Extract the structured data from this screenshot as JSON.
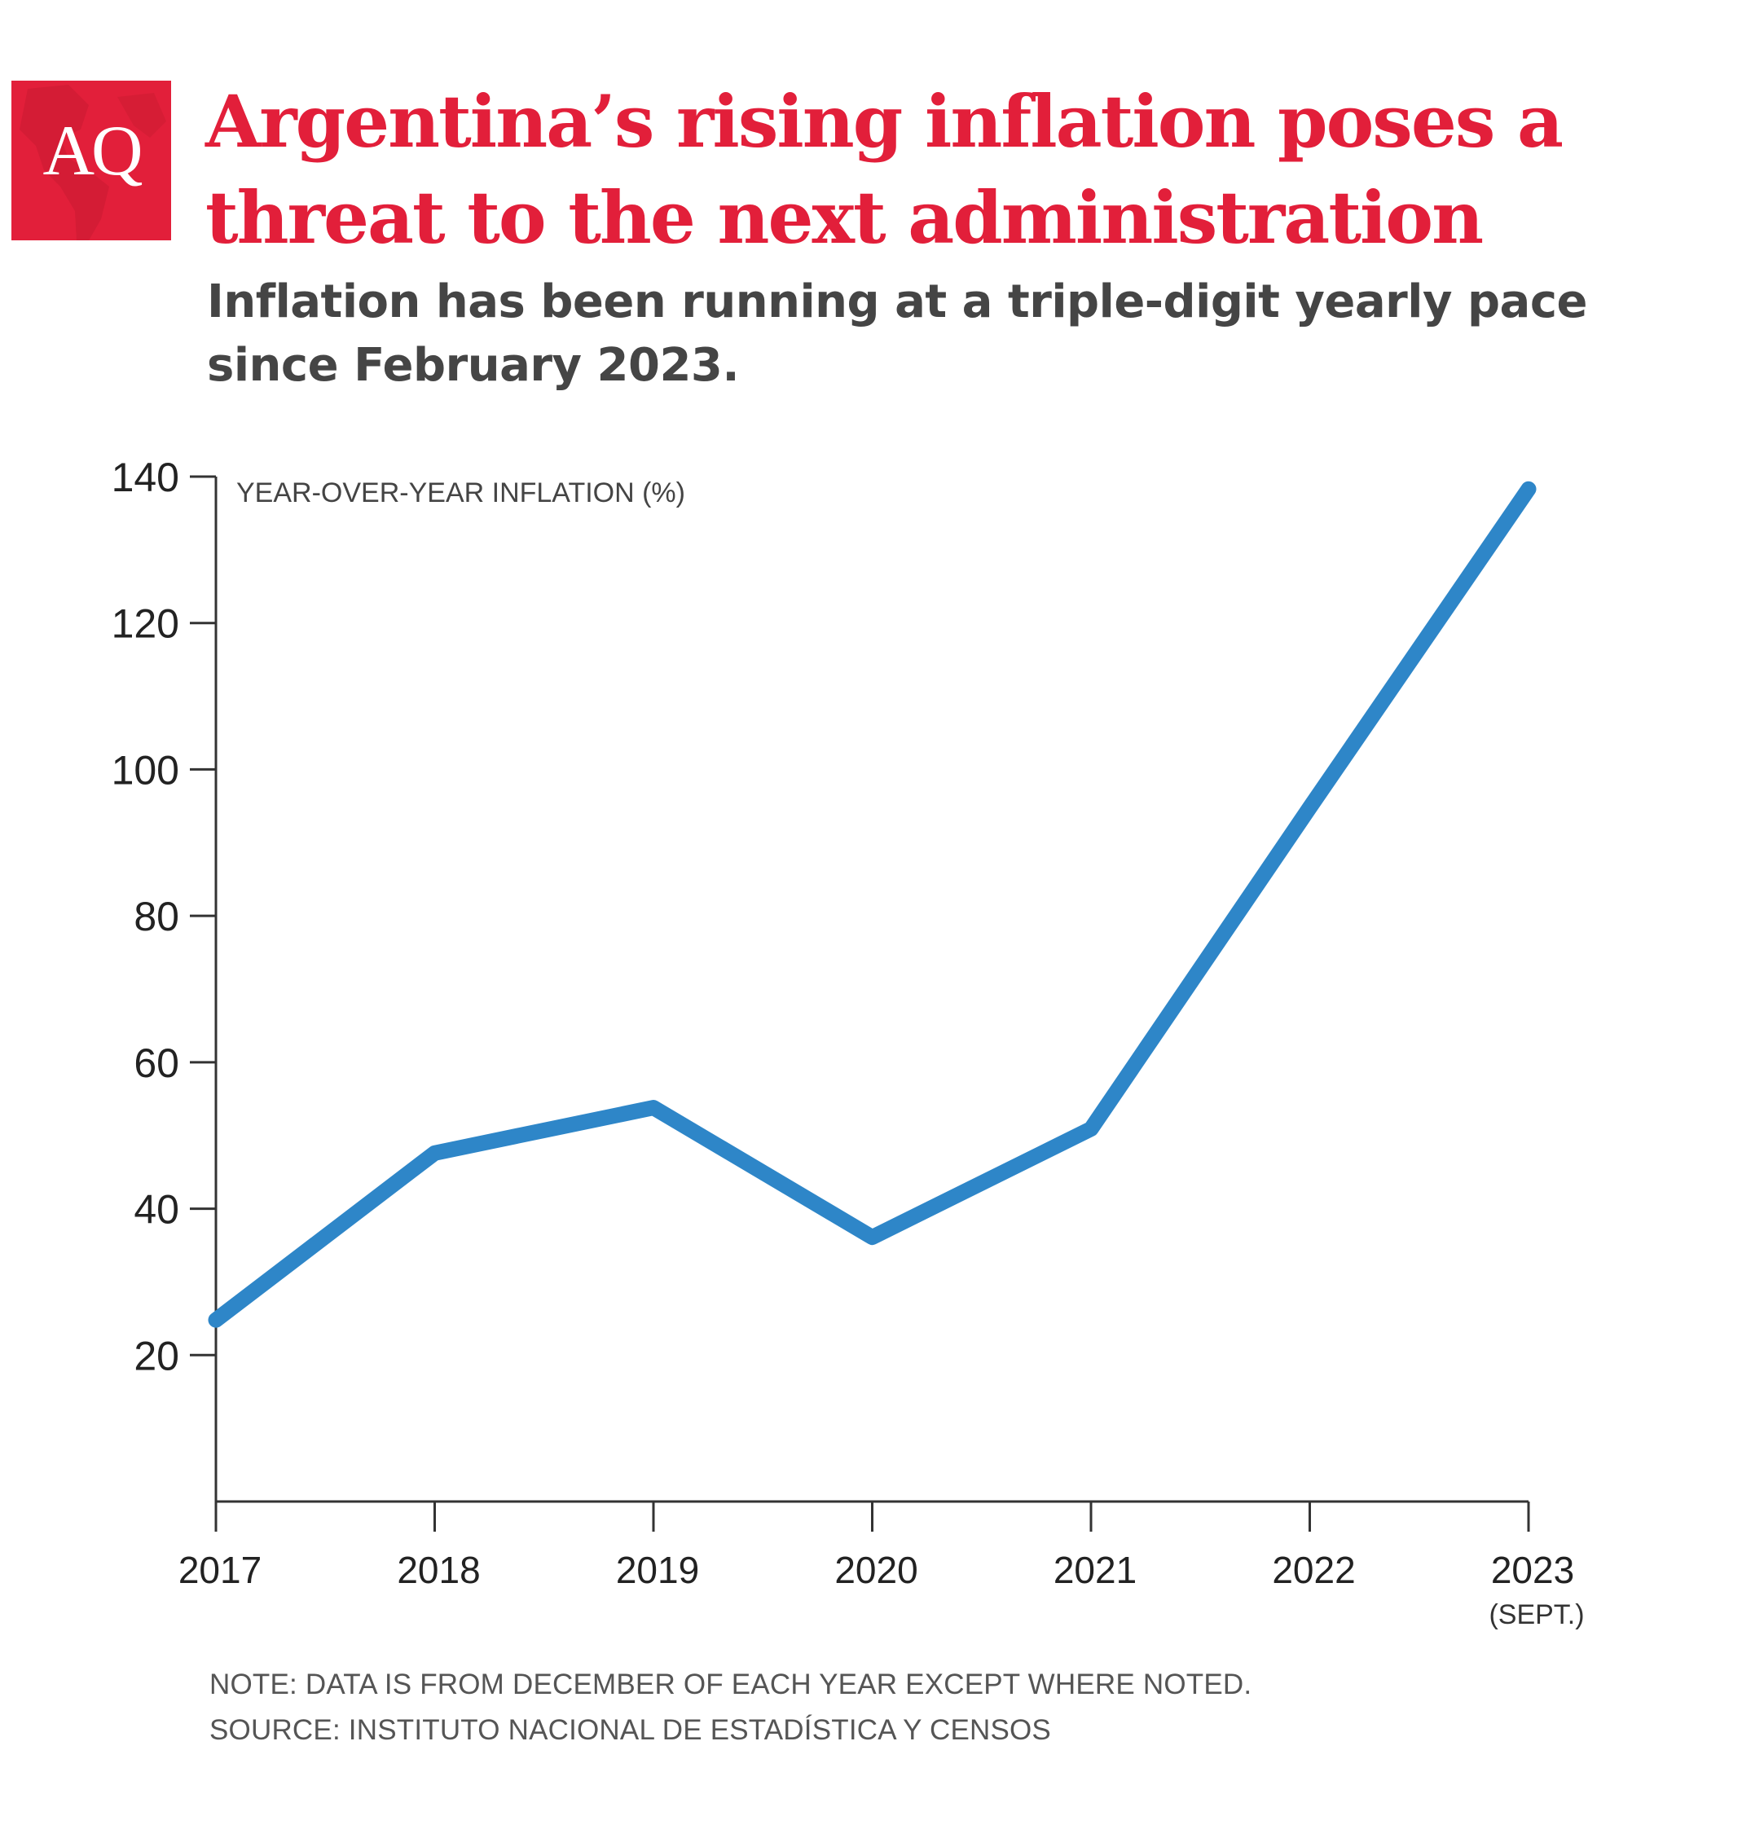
{
  "brand": {
    "logo_text": "AQ",
    "color": "#e21f3a"
  },
  "header": {
    "title": "Argentina’s rising inflation poses a threat to the next administration",
    "subtitle": "Inflation has been running at a triple-digit yearly pace since February 2023."
  },
  "chart_data": {
    "type": "line",
    "title": "Argentina’s rising inflation poses a threat to the next administration",
    "ylabel": "YEAR-OVER-YEAR INFLATION (%)",
    "xlabel": "",
    "x": [
      "2017",
      "2018",
      "2019",
      "2020",
      "2021",
      "2022",
      "2023"
    ],
    "x_sublabels": [
      "",
      "",
      "",
      "",
      "",
      "",
      "(SEPT.)"
    ],
    "y_ticks": [
      20,
      40,
      60,
      80,
      100,
      120,
      140
    ],
    "ylim": [
      0,
      140
    ],
    "grid": false,
    "series": [
      {
        "values": [
          24.8,
          47.6,
          53.8,
          36.1,
          50.9,
          94.8,
          138.3
        ],
        "color": "#2e86c8"
      }
    ]
  },
  "footer": {
    "note": "NOTE: DATA IS FROM DECEMBER OF EACH YEAR EXCEPT WHERE NOTED.",
    "source": "SOURCE: INSTITUTO NACIONAL DE ESTADÍSTICA Y CENSOS"
  }
}
